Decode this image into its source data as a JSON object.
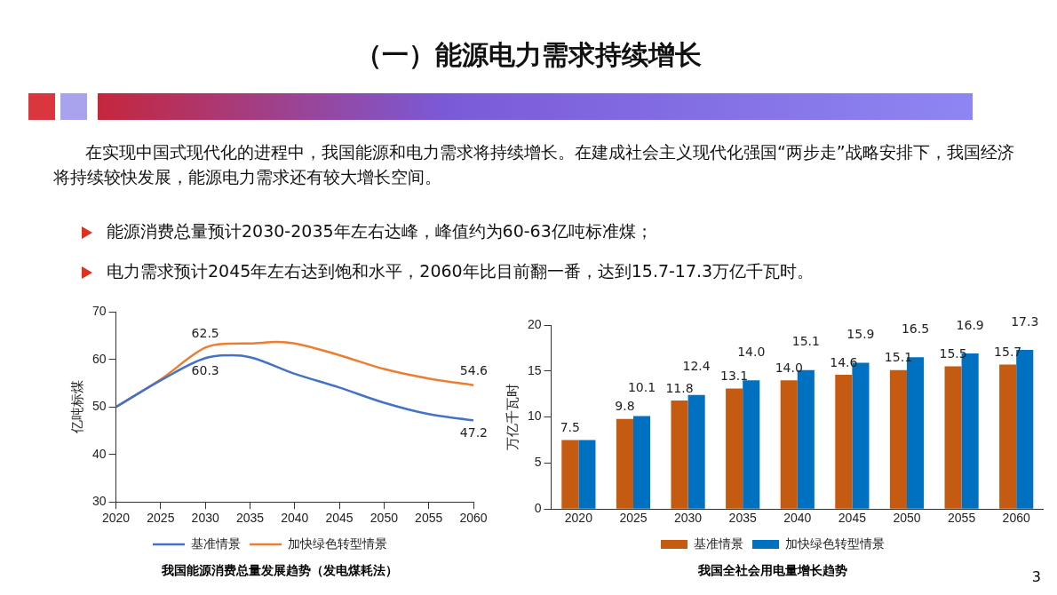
{
  "chart_data": [
    {
      "type": "other",
      "title": "（一）能源电力需求持续增长",
      "annotations": [
        "在实现中国式现代化的进程中，我国能源和电力需求将持续增长。在建成社会主义现代化强国“两步走”战略安排下，我国经济将持续较快发展，能源电力需求还有较大增长空间。",
        "能源消费总量预计2030-2035年左右达峰，峰值约为60-63亿吨标准煤；",
        "电力需求预计2045年左右达到饱和水平，2060年比目前翻一番，达到15.7-17.3万亿千瓦时。",
        "3"
      ]
    },
    {
      "type": "line",
      "ylabel": "亿吨标煤",
      "xlim": [
        2020,
        2060
      ],
      "xticks": [
        2020,
        2025,
        2030,
        2035,
        2040,
        2045,
        2050,
        2055,
        2060
      ],
      "ylim": [
        30,
        70
      ],
      "yticks": [
        30,
        40,
        50,
        60,
        70
      ],
      "grid": false,
      "legend": "bottom",
      "marker": "none",
      "annotations": [
        "我国能源消费总量发展趋势（发电煤耗法）"
      ],
      "series": [
        {
          "name": "基准情景",
          "color": "#4472c4",
          "x": [
            2020,
            2025,
            2030,
            2033,
            2035,
            2040,
            2045,
            2050,
            2055,
            2060
          ],
          "values": [
            50,
            55.6,
            60.3,
            60.9,
            60.5,
            57.0,
            54.1,
            50.9,
            48.5,
            47.2
          ],
          "value_labels": [
            null,
            null,
            "60.3",
            null,
            null,
            null,
            null,
            null,
            null,
            "47.2"
          ]
        },
        {
          "name": "加快绿色转型情景",
          "color": "#ed7d31",
          "x": [
            2020,
            2025,
            2030,
            2032,
            2035,
            2038,
            2040,
            2045,
            2050,
            2055,
            2060
          ],
          "values": [
            50,
            55.8,
            62.5,
            63.3,
            63.4,
            63.7,
            63.4,
            60.9,
            58.0,
            56.0,
            54.6
          ],
          "value_labels": [
            null,
            null,
            "62.5",
            null,
            null,
            null,
            null,
            null,
            null,
            null,
            "54.6"
          ]
        }
      ]
    },
    {
      "type": "bar",
      "ylabel": "万亿千瓦时",
      "categories": [
        "2020",
        "2025",
        "2030",
        "2035",
        "2040",
        "2045",
        "2050",
        "2055",
        "2060"
      ],
      "ylim": [
        0,
        20
      ],
      "yticks": [
        0,
        5,
        10,
        15,
        20
      ],
      "grid": false,
      "legend": "bottom",
      "annotations": [
        "我国全社会用电量增长趋势"
      ],
      "series": [
        {
          "name": "基准情景",
          "color": "#c55a11",
          "values": [
            7.5,
            9.8,
            11.8,
            13.1,
            14.0,
            14.6,
            15.1,
            15.5,
            15.7
          ],
          "value_labels": [
            "7.5",
            "9.8",
            "11.8",
            "13.1",
            "14.0",
            "14.6",
            "15.1",
            "15.5",
            "15.7"
          ]
        },
        {
          "name": "加快绿色转型情景",
          "color": "#0070c0",
          "values": [
            7.5,
            10.1,
            12.4,
            14.0,
            15.1,
            15.9,
            16.5,
            16.9,
            17.3
          ],
          "value_labels": [
            null,
            "10.1",
            "12.4",
            "14.0",
            "15.1",
            "15.9",
            "16.5",
            "16.9",
            "17.3"
          ]
        }
      ]
    }
  ]
}
